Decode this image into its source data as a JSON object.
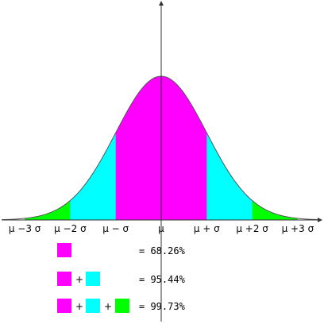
{
  "colors": {
    "band_1": "#ff00ff",
    "band_2": "#00ffff",
    "band_3": "#00ff00",
    "outline": "#555555",
    "axis": "#333333"
  },
  "axis": {
    "ticks": [
      "μ −3 σ",
      "μ −2 σ",
      "μ − σ",
      "μ",
      "μ + σ",
      "μ +2 σ",
      "μ +3 σ"
    ]
  },
  "legend": {
    "plus": "+",
    "rows": [
      {
        "value": "= 68.26%",
        "colors": [
          "#ff00ff"
        ]
      },
      {
        "value": "= 95.44%",
        "colors": [
          "#ff00ff",
          "#00ffff"
        ]
      },
      {
        "value": "= 99.73%",
        "colors": [
          "#ff00ff",
          "#00ffff",
          "#00ff00"
        ]
      }
    ]
  },
  "chart_data": {
    "type": "area",
    "distribution": "normal",
    "bands": [
      {
        "range_sigma": [
          -1,
          1
        ],
        "percent": 68.26,
        "color": "#ff00ff"
      },
      {
        "range_sigma": [
          -2,
          2
        ],
        "percent": 95.44,
        "color": "#00ffff"
      },
      {
        "range_sigma": [
          -3,
          3
        ],
        "percent": 99.73,
        "color": "#00ff00"
      }
    ],
    "x_range_sigma": [
      -3.5,
      3.5
    ]
  }
}
